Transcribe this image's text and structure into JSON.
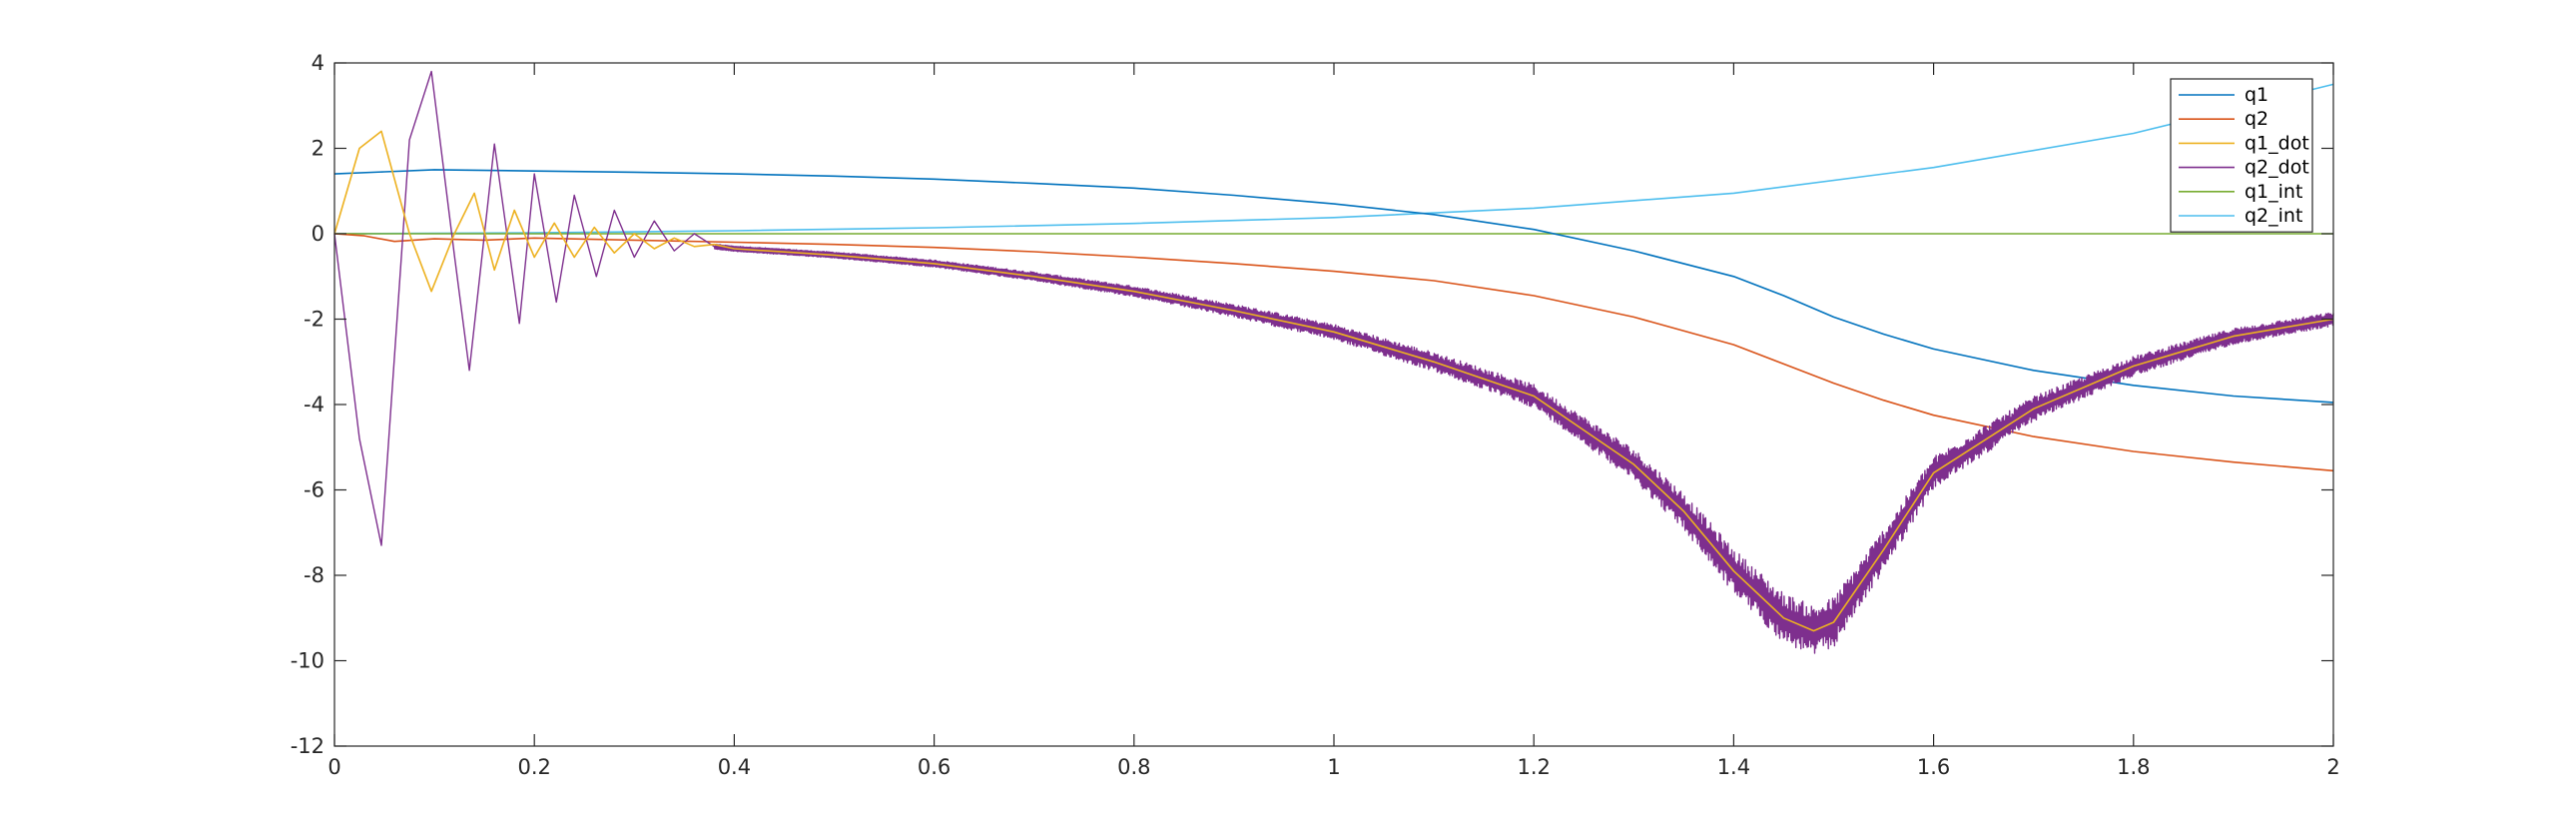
{
  "chart_data": {
    "type": "line",
    "xlim": [
      0,
      2
    ],
    "ylim": [
      -12,
      4
    ],
    "x_ticks": [
      0,
      0.2,
      0.4,
      0.6,
      0.8,
      1,
      1.2,
      1.4,
      1.6,
      1.8,
      2
    ],
    "x_tick_labels": [
      "0",
      "0.2",
      "0.4",
      "0.6",
      "0.8",
      "1",
      "1.2",
      "1.4",
      "1.6",
      "1.8",
      "2"
    ],
    "y_ticks": [
      4,
      2,
      0,
      -2,
      -4,
      -6,
      -8,
      -10,
      -12
    ],
    "y_tick_labels": [
      "4",
      "2",
      "0",
      "-2",
      "-4",
      "-6",
      "-8",
      "-10",
      "-12"
    ],
    "grid": false,
    "legend_position": "top-right",
    "series": [
      {
        "name": "q1",
        "color": "#0072BD",
        "x": [
          0,
          0.05,
          0.1,
          0.2,
          0.3,
          0.4,
          0.5,
          0.6,
          0.7,
          0.8,
          0.9,
          1.0,
          1.1,
          1.2,
          1.3,
          1.4,
          1.45,
          1.5,
          1.55,
          1.6,
          1.7,
          1.8,
          1.9,
          2.0
        ],
        "y": [
          1.4,
          1.45,
          1.5,
          1.47,
          1.44,
          1.4,
          1.35,
          1.28,
          1.18,
          1.07,
          0.9,
          0.7,
          0.45,
          0.1,
          -0.4,
          -1.0,
          -1.45,
          -1.95,
          -2.35,
          -2.7,
          -3.2,
          -3.55,
          -3.8,
          -3.95
        ]
      },
      {
        "name": "q2",
        "color": "#D95319",
        "x": [
          0,
          0.03,
          0.06,
          0.1,
          0.15,
          0.2,
          0.3,
          0.4,
          0.5,
          0.6,
          0.7,
          0.8,
          0.9,
          1.0,
          1.1,
          1.2,
          1.3,
          1.4,
          1.45,
          1.5,
          1.55,
          1.6,
          1.7,
          1.8,
          1.9,
          2.0
        ],
        "y": [
          0,
          -0.05,
          -0.18,
          -0.12,
          -0.15,
          -0.1,
          -0.15,
          -0.2,
          -0.25,
          -0.32,
          -0.42,
          -0.55,
          -0.7,
          -0.88,
          -1.1,
          -1.45,
          -1.95,
          -2.6,
          -3.05,
          -3.5,
          -3.9,
          -4.25,
          -4.75,
          -5.1,
          -5.35,
          -5.55
        ]
      },
      {
        "name": "q1_dot",
        "color": "#EDB120",
        "x": [
          0,
          0.025,
          0.047,
          0.075,
          0.097,
          0.12,
          0.14,
          0.16,
          0.18,
          0.2,
          0.22,
          0.24,
          0.26,
          0.28,
          0.3,
          0.32,
          0.34,
          0.36,
          0.38,
          0.4,
          0.5,
          0.6,
          0.7,
          0.8,
          0.9,
          1.0,
          1.1,
          1.2,
          1.3,
          1.35,
          1.4,
          1.45,
          1.48,
          1.5,
          1.55,
          1.6,
          1.7,
          1.8,
          1.9,
          2.0
        ],
        "y": [
          0,
          2.0,
          2.4,
          0.0,
          -1.35,
          0.0,
          0.95,
          -0.85,
          0.55,
          -0.55,
          0.25,
          -0.55,
          0.15,
          -0.45,
          0.0,
          -0.35,
          -0.1,
          -0.3,
          -0.25,
          -0.35,
          -0.5,
          -0.7,
          -1.0,
          -1.35,
          -1.8,
          -2.3,
          -3.0,
          -3.8,
          -5.4,
          -6.5,
          -7.9,
          -9.0,
          -9.3,
          -9.1,
          -7.4,
          -5.6,
          -4.1,
          -3.1,
          -2.4,
          -2.0
        ]
      },
      {
        "name": "q2_dot",
        "color": "#7E2F8E",
        "x": [
          0,
          0.025,
          0.047,
          0.075,
          0.097,
          0.12,
          0.135,
          0.16,
          0.185,
          0.2,
          0.222,
          0.24,
          0.262,
          0.28,
          0.3,
          0.32,
          0.34,
          0.36,
          0.38,
          0.4,
          0.5,
          0.6,
          0.7,
          0.8,
          0.9,
          1.0,
          1.1,
          1.2,
          1.3,
          1.35,
          1.4,
          1.45,
          1.48,
          1.5,
          1.55,
          1.6,
          1.7,
          1.8,
          1.9,
          2.0
        ],
        "y": [
          0,
          -4.8,
          -7.3,
          2.2,
          3.8,
          -0.5,
          -3.2,
          2.1,
          -2.1,
          1.4,
          -1.6,
          0.9,
          -1.0,
          0.55,
          -0.55,
          0.3,
          -0.4,
          0.0,
          -0.3,
          -0.35,
          -0.5,
          -0.7,
          -1.0,
          -1.35,
          -1.8,
          -2.3,
          -3.0,
          -3.8,
          -5.4,
          -6.5,
          -7.9,
          -9.0,
          -9.3,
          -9.1,
          -7.4,
          -5.6,
          -4.1,
          -3.1,
          -2.4,
          -2.0
        ],
        "noise_from_x": 0.38
      },
      {
        "name": "q1_int",
        "color": "#77AC30",
        "x": [
          0,
          2.0
        ],
        "y": [
          0,
          0
        ]
      },
      {
        "name": "q2_int",
        "color": "#4DBEEE",
        "x": [
          0,
          0.2,
          0.4,
          0.6,
          0.8,
          1.0,
          1.2,
          1.4,
          1.6,
          1.8,
          2.0
        ],
        "y": [
          0,
          0.02,
          0.07,
          0.14,
          0.24,
          0.38,
          0.6,
          0.95,
          1.55,
          2.35,
          3.5
        ]
      }
    ]
  }
}
